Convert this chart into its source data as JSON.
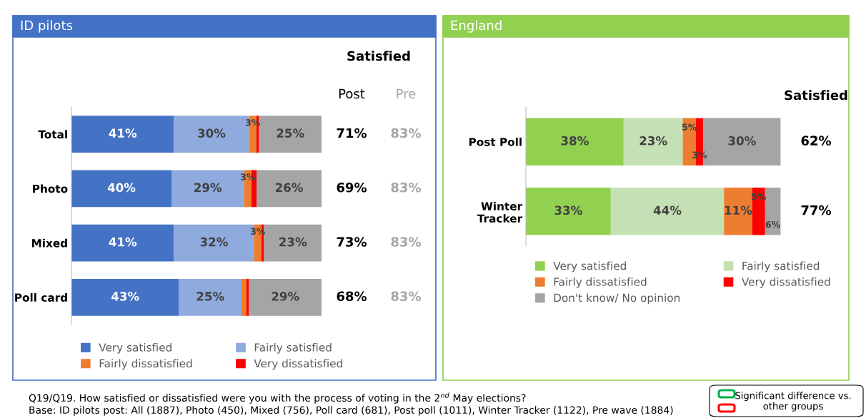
{
  "chart_data": [
    {
      "type": "bar",
      "orientation": "horizontal",
      "stacked": true,
      "title": "ID pilots",
      "categories": [
        "Total",
        "Photo",
        "Mixed",
        "Poll card"
      ],
      "xlim": [
        0,
        100
      ],
      "tick_labels": "y",
      "legend": "bottom",
      "series": [
        {
          "name": "Very satisfied",
          "color": "#4472c4",
          "values": [
            41,
            40,
            41,
            43
          ],
          "value_labels": [
            "41%",
            "40%",
            "41%",
            "43%"
          ]
        },
        {
          "name": "Fairly satisfied",
          "color": "#8faadc",
          "values": [
            30,
            29,
            32,
            25
          ],
          "value_labels": [
            "30%",
            "29%",
            "32%",
            "25%"
          ]
        },
        {
          "name": "Fairly dissatisfied",
          "color": "#ed7d31",
          "values": [
            3,
            3,
            3,
            2
          ],
          "value_labels": [
            "3%",
            "3%",
            "3%",
            null
          ]
        },
        {
          "name": "Very dissatisfied",
          "color": "#ff0000",
          "values": [
            1,
            2,
            1,
            1
          ],
          "value_labels": [
            null,
            null,
            null,
            null
          ]
        },
        {
          "color": "#a5a5a5",
          "values": [
            25,
            26,
            23,
            29
          ],
          "value_labels": [
            "25%",
            "26%",
            "23%",
            "29%"
          ]
        }
      ],
      "annotations": [
        "Satisfied",
        "Post",
        "Pre",
        "71%",
        "83%",
        "69%",
        "83%",
        "73%",
        "83%",
        "68%",
        "83%"
      ]
    },
    {
      "type": "bar",
      "orientation": "horizontal",
      "stacked": true,
      "title": "England",
      "categories": [
        "Post Poll",
        "Winter\nTracker"
      ],
      "xlim": [
        0,
        100
      ],
      "tick_labels": "y",
      "legend": "bottom",
      "series": [
        {
          "name": "Very satisfied",
          "color": "#92d050",
          "values": [
            38,
            33
          ],
          "value_labels": [
            "38%",
            "33%"
          ]
        },
        {
          "name": "Fairly satisfied",
          "color": "#c5e0b4",
          "values": [
            23,
            44
          ],
          "value_labels": [
            "23%",
            "44%"
          ]
        },
        {
          "name": "Fairly dissatisfied",
          "color": "#ed7d31",
          "values": [
            5,
            11
          ],
          "value_labels": [
            "5%",
            "11%"
          ]
        },
        {
          "name": "Very dissatisfied",
          "color": "#ff0000",
          "values": [
            3,
            5
          ],
          "value_labels": [
            "3%",
            "5%"
          ]
        },
        {
          "name": "Don't know/ No opinion",
          "color": "#a5a5a5",
          "values": [
            30,
            6
          ],
          "value_labels": [
            "30%",
            "6%"
          ]
        }
      ],
      "annotations": [
        "Satisfied",
        "62%",
        "77%"
      ]
    },
    {
      "type": "other",
      "annotations": [
        "Q19/Q19. How satisfied or dissatisfied were you with the process of voting in the 2$^{nd}$ May elections?",
        "Base: ID pilots post: All (1887), Photo (450), Mixed (756), Poll card (681), Post poll (1011), Winter Tracker (1122), Pre wave (1884)",
        "Significant difference vs.\nother groups"
      ]
    }
  ]
}
